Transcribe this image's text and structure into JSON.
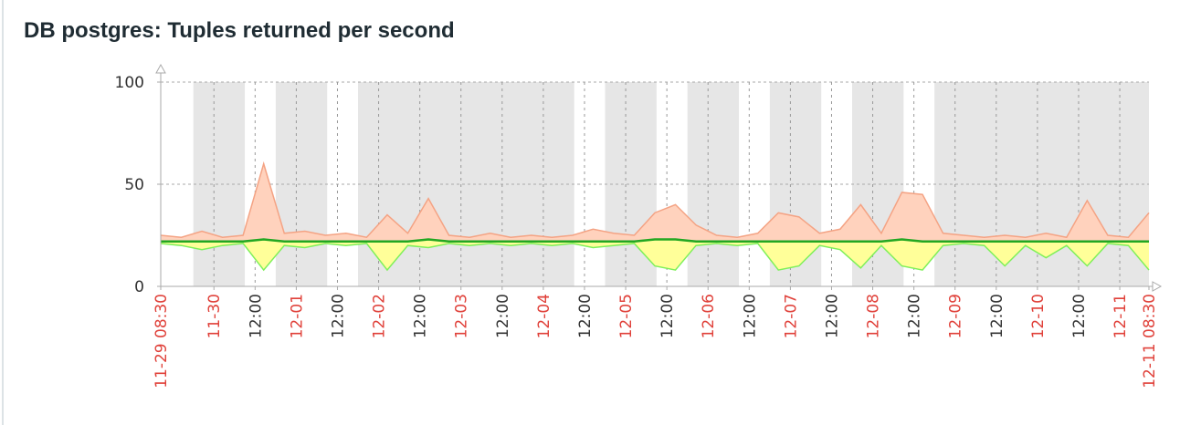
{
  "chart_data": {
    "type": "minmax-line",
    "title": "DB postgres: Tuples returned per second",
    "xlim": [
      "11-29 08:30",
      "12-11 08:30"
    ],
    "ylim": [
      0,
      100
    ],
    "yticks": [
      0,
      50,
      100
    ],
    "grid": true,
    "date_label_color": "#e0413a",
    "time_label_color": "#333333",
    "shade_color": "#e6e6e6",
    "shaded_periods": [
      [
        "11-29 18:00",
        "11-30 09:00"
      ],
      [
        "11-30 18:00",
        "12-01 09:00"
      ],
      [
        "12-01 18:00",
        "12-04 09:00"
      ],
      [
        "12-04 18:00",
        "12-05 09:00"
      ],
      [
        "12-05 18:00",
        "12-06 09:00"
      ],
      [
        "12-06 18:00",
        "12-07 09:00"
      ],
      [
        "12-07 18:00",
        "12-08 09:00"
      ],
      [
        "12-08 18:00",
        "12-11 08:30"
      ]
    ],
    "xticks": [
      "11-29 08:30",
      {
        "value": "11-30 00:00",
        "label": "11-30"
      },
      {
        "value": "11-30 12:00",
        "label": "12:00"
      },
      {
        "value": "12-01 00:00",
        "label": "12-01"
      },
      {
        "value": "12-01 12:00",
        "label": "12:00"
      },
      {
        "value": "12-02 00:00",
        "label": "12-02"
      },
      {
        "value": "12-02 12:00",
        "label": "12:00"
      },
      {
        "value": "12-03 00:00",
        "label": "12-03"
      },
      {
        "value": "12-03 12:00",
        "label": "12:00"
      },
      {
        "value": "12-04 00:00",
        "label": "12-04"
      },
      {
        "value": "12-04 12:00",
        "label": "12:00"
      },
      {
        "value": "12-05 00:00",
        "label": "12-05"
      },
      {
        "value": "12-05 12:00",
        "label": "12:00"
      },
      {
        "value": "12-06 00:00",
        "label": "12-06"
      },
      {
        "value": "12-06 12:00",
        "label": "12:00"
      },
      {
        "value": "12-07 00:00",
        "label": "12-07"
      },
      {
        "value": "12-07 12:00",
        "label": "12:00"
      },
      {
        "value": "12-08 00:00",
        "label": "12-08"
      },
      {
        "value": "12-08 12:00",
        "label": "12:00"
      },
      {
        "value": "12-09 00:00",
        "label": "12-09"
      },
      {
        "value": "12-09 12:00",
        "label": "12:00"
      },
      {
        "value": "12-10 00:00",
        "label": "12-10"
      },
      {
        "value": "12-10 12:00",
        "label": "12:00"
      },
      {
        "value": "12-11 00:00",
        "label": "12-11"
      },
      "12-11 08:30"
    ],
    "x": [
      "11-29 08:30",
      "11-29 14:30",
      "11-29 20:30",
      "11-30 02:30",
      "11-30 08:30",
      "11-30 14:30",
      "11-30 20:30",
      "12-01 02:30",
      "12-01 08:30",
      "12-01 14:30",
      "12-01 20:30",
      "12-02 02:30",
      "12-02 08:30",
      "12-02 14:30",
      "12-02 20:30",
      "12-03 02:30",
      "12-03 08:30",
      "12-03 14:30",
      "12-03 20:30",
      "12-04 02:30",
      "12-04 08:30",
      "12-04 14:30",
      "12-04 20:30",
      "12-05 02:30",
      "12-05 08:30",
      "12-05 14:30",
      "12-05 20:30",
      "12-06 02:30",
      "12-06 08:30",
      "12-06 14:30",
      "12-06 20:30",
      "12-07 02:30",
      "12-07 08:30",
      "12-07 14:30",
      "12-07 20:30",
      "12-08 02:30",
      "12-08 08:30",
      "12-08 14:30",
      "12-08 20:30",
      "12-09 02:30",
      "12-09 08:30",
      "12-09 14:30",
      "12-09 20:30",
      "12-10 02:30",
      "12-10 08:30",
      "12-10 14:30",
      "12-10 20:30",
      "12-11 02:30",
      "12-11 08:30"
    ],
    "series": [
      {
        "color": "#f4a384",
        "fill": "#ffd2bd",
        "values": [
          25,
          24,
          27,
          24,
          25,
          60,
          26,
          27,
          25,
          26,
          24,
          35,
          26,
          43,
          25,
          24,
          26,
          24,
          25,
          24,
          25,
          28,
          26,
          25,
          36,
          40,
          30,
          25,
          24,
          26,
          36,
          34,
          26,
          28,
          40,
          26,
          46,
          45,
          26,
          25,
          24,
          25,
          24,
          26,
          24,
          42,
          25,
          24,
          36
        ]
      },
      {
        "color": "#7ef05a",
        "fill": "#ffff99",
        "values": [
          21,
          20,
          18,
          20,
          21,
          8,
          20,
          19,
          21,
          20,
          21,
          8,
          20,
          19,
          21,
          20,
          21,
          20,
          21,
          20,
          21,
          19,
          20,
          21,
          10,
          8,
          20,
          21,
          20,
          21,
          8,
          10,
          20,
          18,
          9,
          20,
          10,
          8,
          20,
          21,
          20,
          10,
          20,
          14,
          20,
          10,
          21,
          20,
          8
        ]
      },
      {
        "color": "#22a722",
        "values": [
          22,
          22,
          22,
          22,
          22,
          23,
          22,
          22,
          22,
          22,
          22,
          22,
          22,
          23,
          22,
          22,
          22,
          22,
          22,
          22,
          22,
          22,
          22,
          22,
          23,
          23,
          22,
          22,
          22,
          22,
          22,
          22,
          22,
          22,
          22,
          22,
          23,
          22,
          22,
          22,
          22,
          22,
          22,
          22,
          22,
          22,
          22,
          22,
          22
        ]
      }
    ]
  }
}
